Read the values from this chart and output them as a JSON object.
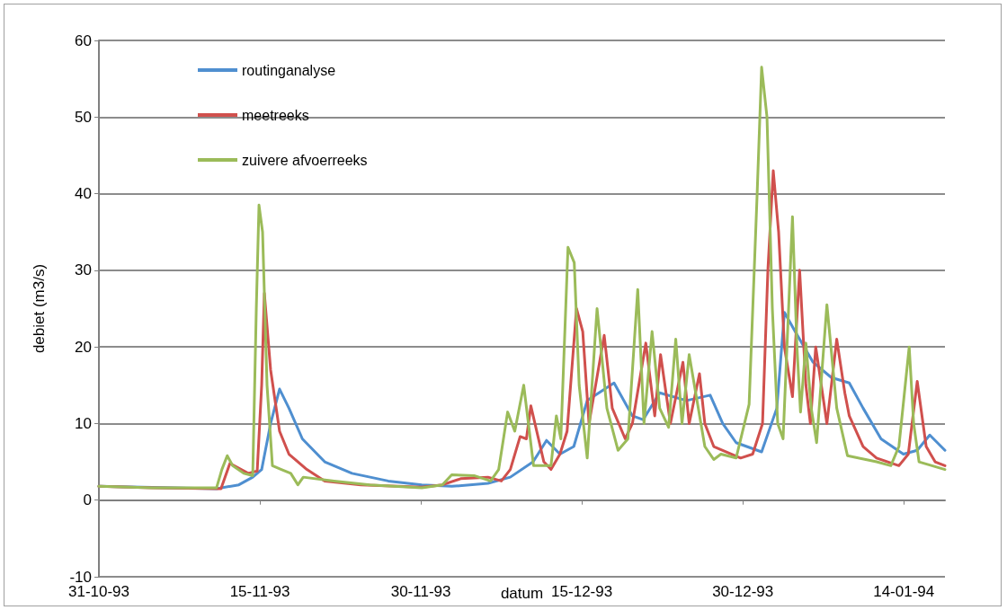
{
  "chart_data": {
    "type": "line",
    "xlabel": "datum",
    "ylabel": "debiet (m3/s)",
    "xlim": [
      "1993-10-31",
      "1994-01-17T20:00"
    ],
    "xticks": [
      {
        "value": "1993-10-31",
        "label": "31-10-93"
      },
      {
        "value": "1993-11-15",
        "label": "15-11-93"
      },
      {
        "value": "1993-11-30",
        "label": "30-11-93"
      },
      {
        "value": "1993-12-15",
        "label": "15-12-93"
      },
      {
        "value": "1993-12-30",
        "label": "30-12-93"
      },
      {
        "value": "1994-01-14",
        "label": "14-01-94"
      }
    ],
    "ylim": [
      -10,
      60
    ],
    "yticks": [
      -10,
      0,
      10,
      20,
      30,
      40,
      50,
      60
    ],
    "grid": "y",
    "legend": "top left",
    "marker": "none",
    "line_style": "solid",
    "series": [
      {
        "name": "routinganalyse",
        "color": "#4f8fd0",
        "x": [
          "1993-10-31",
          "1993-11-10T23:00",
          "1993-11-13T01:00",
          "1993-11-14T08:00",
          "1993-11-15T04:00",
          "1993-11-16T00:00",
          "1993-11-16T20:00",
          "1993-11-17T17:00",
          "1993-11-18T23:00",
          "1993-11-21T01:00",
          "1993-11-23T14:00",
          "1993-11-26T23:00",
          "1993-11-30T02:00",
          "1993-12-02T21:00",
          "1993-12-06T06:00",
          "1993-12-08T08:00",
          "1993-12-10T11:00",
          "1993-12-11T17:00",
          "1993-12-12T23:00",
          "1993-12-14T06:00",
          "1993-12-15T12:00",
          "1993-12-18T00:00",
          "1993-12-19T17:00",
          "1993-12-20T17:00",
          "1993-12-22T06:00",
          "1993-12-24T18:00",
          "1993-12-26T23:00",
          "1993-12-28T03:00",
          "1993-12-29T09:00",
          "1993-12-31T18:00",
          "1994-01-02T04:00",
          "1994-01-02T21:00",
          "1994-01-03T21:00",
          "1994-01-05T13:00",
          "1994-01-07T06:00",
          "1994-01-08T22:00",
          "1994-01-10T05:00",
          "1994-01-11T21:00",
          "1994-01-13T23:00",
          "1994-01-15T06:00",
          "1994-01-16T10:00",
          "1994-01-17T20:00"
        ],
        "values": [
          1.8,
          1.5,
          2,
          3,
          4,
          10,
          14.5,
          12,
          8,
          5,
          3.5,
          2.5,
          2,
          1.8,
          2.2,
          3,
          5,
          7.8,
          6,
          7,
          13,
          15.3,
          11,
          10.5,
          14,
          13,
          13.7,
          10,
          7.5,
          6.3,
          12,
          24.5,
          22,
          18,
          16,
          15.3,
          12,
          8,
          6,
          6.5,
          8.5,
          6.5
        ]
      },
      {
        "name": "meetreeks",
        "color": "#d0504d",
        "x": [
          "1993-10-31",
          "1993-11-05",
          "1993-11-11T09:00",
          "1993-11-12T05:00",
          "1993-11-13T22:00",
          "1993-11-14T18:00",
          "1993-11-15T04:00",
          "1993-11-15T10:00",
          "1993-11-16T00:00",
          "1993-11-16T20:00",
          "1993-11-17T17:00",
          "1993-11-19T09:00",
          "1993-11-21T01:00",
          "1993-11-24T10:00",
          "1993-11-30T02:00",
          "1993-12-02T00:00",
          "1993-12-03T17:00",
          "1993-12-06T06:00",
          "1993-12-07T12:00",
          "1993-12-08T08:00",
          "1993-12-09T06:00",
          "1993-12-09T20:00",
          "1993-12-10T06:00",
          "1993-12-11T11:00",
          "1993-12-12T03:00",
          "1993-12-12T23:00",
          "1993-12-13T15:00",
          "1993-12-14T12:00",
          "1993-12-15T02:00",
          "1993-12-15T16:00",
          "1993-12-17T02:00",
          "1993-12-17T20:00",
          "1993-12-19T01:00",
          "1993-12-19T17:00",
          "1993-12-20T23:00",
          "1993-12-21T19:00",
          "1993-12-22T08:00",
          "1993-12-23T06:00",
          "1993-12-24T10:00",
          "1993-12-25T00:00",
          "1993-12-25T23:00",
          "1993-12-26T11:00",
          "1993-12-27T07:00",
          "1993-12-28T03:00",
          "1993-12-29T19:00",
          "1993-12-30T22:00",
          "1993-12-31T20:00",
          "1994-01-01T08:00",
          "1994-01-01T20:00",
          "1994-01-02T08:00",
          "1994-01-02T21:00",
          "1994-01-03T15:00",
          "1994-01-04T07:00",
          "1994-01-04T21:00",
          "1994-01-05T07:00",
          "1994-01-05T19:00",
          "1994-01-06T20:00",
          "1994-01-07T18:00",
          "1994-01-08T12:00",
          "1994-01-08T22:00",
          "1994-01-10T05:00",
          "1994-01-11T11:00",
          "1994-01-13T13:00",
          "1994-01-14T10:00",
          "1994-01-15T06:00",
          "1994-01-16T02:00",
          "1994-01-16T22:00",
          "1994-01-17T20:00"
        ],
        "values": [
          1.8,
          1.6,
          1.5,
          4.8,
          3.5,
          3.8,
          15,
          27,
          17,
          9,
          6,
          4,
          2.5,
          2,
          1.7,
          2,
          2.8,
          3,
          2.5,
          4,
          8.3,
          8,
          12.3,
          5,
          4,
          6,
          9,
          25,
          22,
          10,
          21.5,
          12,
          8,
          10,
          20.5,
          11,
          19,
          10,
          18,
          10,
          16.5,
          10,
          7,
          6.5,
          5.5,
          6,
          10,
          30,
          43,
          35,
          20,
          13.5,
          30,
          15,
          10,
          20,
          10,
          21,
          14,
          11,
          7,
          5.5,
          4.5,
          6,
          15.5,
          7,
          5,
          4.5
        ]
      },
      {
        "name": "zuivere afvoerreeks",
        "color": "#9bbb59",
        "x": [
          "1993-10-31",
          "1993-11-05",
          "1993-11-10T23:00",
          "1993-11-11T11:00",
          "1993-11-11T23:00",
          "1993-11-12T11:00",
          "1993-11-13T12:00",
          "1993-11-14T08:00",
          "1993-11-14T16:00",
          "1993-11-14T22:00",
          "1993-11-15T06:00",
          "1993-11-15T16:00",
          "1993-11-16T04:00",
          "1993-11-17T00:00",
          "1993-11-17T21:00",
          "1993-11-18T13:00",
          "1993-11-19T01:00",
          "1993-11-21T22:00",
          "1993-11-25T06:00",
          "1993-11-30T02:00",
          "1993-12-02T00:00",
          "1993-12-02T21:00",
          "1993-12-04T23:00",
          "1993-12-06T12:00",
          "1993-12-07T06:00",
          "1993-12-08T02:00",
          "1993-12-08T18:00",
          "1993-12-09T14:00",
          "1993-12-10T12:00",
          "1993-12-12T03:00",
          "1993-12-12T15:00",
          "1993-12-13T01:00",
          "1993-12-13T17:00",
          "1993-12-14T07:00",
          "1993-12-14T18:00",
          "1993-12-15T12:00",
          "1993-12-16T10:00",
          "1993-12-17T08:00",
          "1993-12-18T09:00",
          "1993-12-19T07:00",
          "1993-12-20T05:00",
          "1993-12-20T19:00",
          "1993-12-21T13:00",
          "1993-12-22T06:00",
          "1993-12-23T02:00",
          "1993-12-23T18:00",
          "1993-12-24T08:00",
          "1993-12-25T00:00",
          "1993-12-26T11:00",
          "1993-12-27T07:00",
          "1993-12-27T23:00",
          "1993-12-29T09:00",
          "1993-12-30T14:00",
          "1993-12-31T08:00",
          "1993-12-31T18:00",
          "1994-01-01T06:00",
          "1994-01-01T18:00",
          "1994-01-02T06:00",
          "1994-01-02T18:00",
          "1994-01-03T15:00",
          "1994-01-04T01:00",
          "1994-01-04T09:00",
          "1994-01-04T21:00",
          "1994-01-05T09:00",
          "1994-01-05T21:00",
          "1994-01-06T20:00",
          "1994-01-07T18:00",
          "1994-01-08T18:00",
          "1994-01-11T11:00",
          "1994-01-12T19:00",
          "1994-01-13T13:00",
          "1994-01-14T12:00",
          "1994-01-14T22:00",
          "1994-01-15T10:00",
          "1994-01-17T20:00"
        ],
        "values": [
          1.8,
          1.6,
          1.6,
          4,
          5.8,
          4.5,
          3.5,
          3.2,
          25,
          38.5,
          35,
          15,
          4.5,
          4,
          3.5,
          2,
          3,
          2.5,
          2,
          1.6,
          2,
          3.3,
          3.2,
          2.5,
          4,
          11.5,
          9,
          15,
          4.5,
          4.5,
          11,
          8,
          33,
          31,
          15,
          5.5,
          25,
          12,
          6.5,
          8,
          27.5,
          10,
          22,
          12,
          9.5,
          21,
          10,
          19,
          7,
          5.3,
          6,
          5.5,
          12.5,
          40,
          56.5,
          50,
          25,
          10,
          8,
          37,
          20,
          11.5,
          20.5,
          12,
          7.5,
          25.5,
          12,
          5.8,
          5,
          4.5,
          7,
          20,
          10,
          5,
          4
        ]
      }
    ]
  }
}
